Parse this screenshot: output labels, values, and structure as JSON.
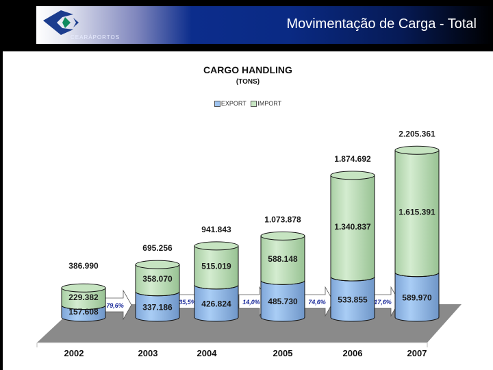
{
  "header": {
    "logo_text": "CEARÁPORTOS",
    "slide_title": "Movimentação de Carga - Total"
  },
  "chart": {
    "title": "CARGO HANDLING",
    "subtitle": "(TONS)",
    "legend": [
      {
        "label": "EXPORT",
        "color": "#9ec3ef"
      },
      {
        "label": "IMPORT",
        "color": "#c8e6c3"
      }
    ]
  },
  "chart_data": {
    "type": "bar",
    "stacked": true,
    "title": "CARGO HANDLING",
    "subtitle": "(TONS)",
    "xlabel": "",
    "ylabel": "",
    "categories": [
      "2002",
      "2003",
      "2004",
      "2005",
      "2006",
      "2007"
    ],
    "series": [
      {
        "name": "EXPORT",
        "values": [
          157608,
          337186,
          426824,
          485730,
          533855,
          589970
        ],
        "labels": [
          "157.608",
          "337.186",
          "426.824",
          "485.730",
          "533.855",
          "589.970"
        ]
      },
      {
        "name": "IMPORT",
        "values": [
          229382,
          358070,
          515019,
          588148,
          1340837,
          1615391
        ],
        "labels": [
          "229.382",
          "358.070",
          "515.019",
          "588.148",
          "1.340.837",
          "1.615.391"
        ]
      }
    ],
    "totals": [
      386990,
      695256,
      941843,
      1073878,
      1874692,
      2205361
    ],
    "total_labels": [
      "386.990",
      "695.256",
      "941.843",
      "1.073.878",
      "1.874.692",
      "2.205.361"
    ],
    "growth_annotations": [
      "79,6%",
      "35,5%",
      "14,0%",
      "74,6%",
      "17,6%"
    ],
    "legend_position": "top",
    "grid": false,
    "style": "3d-cylinder"
  }
}
